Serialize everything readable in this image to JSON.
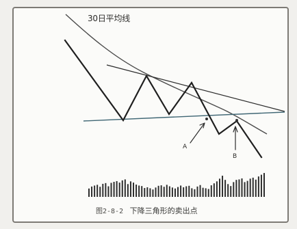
{
  "diagram": {
    "ma_label": "30日平均线",
    "point_a": "A",
    "point_b": "B",
    "caption_number": "图2-8-2",
    "caption_title": "下降三角形的卖出点"
  },
  "colors": {
    "price_line": "#1f1f1f",
    "moving_average": "#4a4a4a",
    "trend_line": "#2b2b2b",
    "support_line": "#3f6674",
    "volume_bar": "#2c2c2c"
  },
  "volume_bars": [
    0.34,
    0.42,
    0.46,
    0.49,
    0.41,
    0.53,
    0.56,
    0.43,
    0.57,
    0.61,
    0.64,
    0.58,
    0.67,
    0.71,
    0.52,
    0.63,
    0.58,
    0.5,
    0.46,
    0.44,
    0.36,
    0.39,
    0.35,
    0.3,
    0.38,
    0.45,
    0.47,
    0.41,
    0.49,
    0.43,
    0.38,
    0.34,
    0.4,
    0.46,
    0.39,
    0.43,
    0.45,
    0.35,
    0.31,
    0.42,
    0.48,
    0.37,
    0.35,
    0.32,
    0.47,
    0.55,
    0.63,
    0.74,
    0.86,
    0.69,
    0.52,
    0.44,
    0.6,
    0.69,
    0.71,
    0.75,
    0.6,
    0.65,
    0.74,
    0.78,
    0.7,
    0.83,
    0.9,
    0.97
  ]
}
